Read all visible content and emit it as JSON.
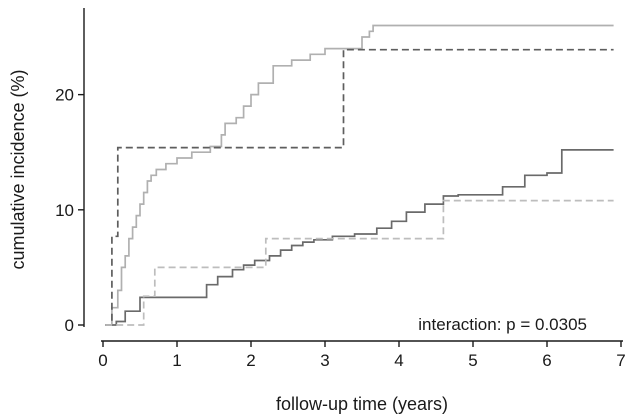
{
  "chart_data": {
    "type": "line",
    "subtype": "step",
    "title": "",
    "xlabel": "follow-up time (years)",
    "ylabel": "cumulative incidence (%)",
    "xlim": [
      0,
      7
    ],
    "ylim": [
      0,
      27
    ],
    "xticks": [
      0,
      1,
      2,
      3,
      4,
      5,
      6,
      7
    ],
    "yticks": [
      0,
      10,
      20
    ],
    "grid": false,
    "legend": "none",
    "annotation": "interaction: p = 0.0305",
    "series": [
      {
        "color": "#b0b0b0",
        "line_style": "solid",
        "x": [
          0.03,
          0.12,
          0.2,
          0.25,
          0.3,
          0.35,
          0.4,
          0.45,
          0.5,
          0.55,
          0.6,
          0.65,
          0.72,
          0.85,
          1.0,
          1.2,
          1.45,
          1.6,
          1.65,
          1.8,
          1.9,
          2.0,
          2.1,
          2.3,
          2.4,
          2.55,
          2.8,
          3.0,
          3.1,
          3.3,
          3.5,
          3.6,
          3.65,
          6.9
        ],
        "y": [
          0.0,
          1.5,
          3.0,
          5.0,
          6.0,
          7.5,
          8.5,
          9.5,
          10.5,
          11.5,
          12.5,
          13.0,
          13.5,
          14.0,
          14.5,
          15.0,
          15.5,
          16.5,
          17.5,
          18.0,
          19.0,
          20.0,
          21.0,
          22.5,
          22.5,
          23.0,
          23.5,
          24.0,
          24.0,
          24.0,
          25.0,
          25.5,
          26.0,
          26.0
        ]
      },
      {
        "color": "#5e5e5e",
        "line_style": "dashed",
        "x": [
          0.03,
          0.12,
          0.2,
          3.25,
          6.9
        ],
        "y": [
          0.0,
          7.7,
          15.4,
          23.9,
          23.9
        ]
      },
      {
        "color": "#6a6a6a",
        "line_style": "solid",
        "x": [
          0.03,
          0.18,
          0.3,
          0.5,
          1.4,
          1.55,
          1.75,
          1.9,
          2.05,
          2.25,
          2.4,
          2.55,
          2.7,
          2.85,
          3.1,
          3.4,
          3.7,
          3.9,
          4.1,
          4.35,
          4.6,
          4.8,
          5.4,
          5.7,
          6.0,
          6.2,
          6.9
        ],
        "y": [
          0.0,
          0.3,
          1.2,
          2.4,
          3.5,
          4.2,
          4.8,
          5.2,
          5.6,
          6.0,
          6.5,
          6.9,
          7.2,
          7.4,
          7.7,
          7.9,
          8.4,
          9.0,
          9.8,
          10.5,
          11.2,
          11.3,
          12.0,
          13.0,
          13.2,
          15.2,
          15.2
        ]
      },
      {
        "color": "#bdbdbd",
        "line_style": "dashed",
        "x": [
          0.03,
          0.55,
          0.7,
          2.2,
          4.6,
          6.9
        ],
        "y": [
          0.0,
          2.5,
          5.0,
          7.5,
          10.8,
          10.8
        ]
      }
    ]
  }
}
